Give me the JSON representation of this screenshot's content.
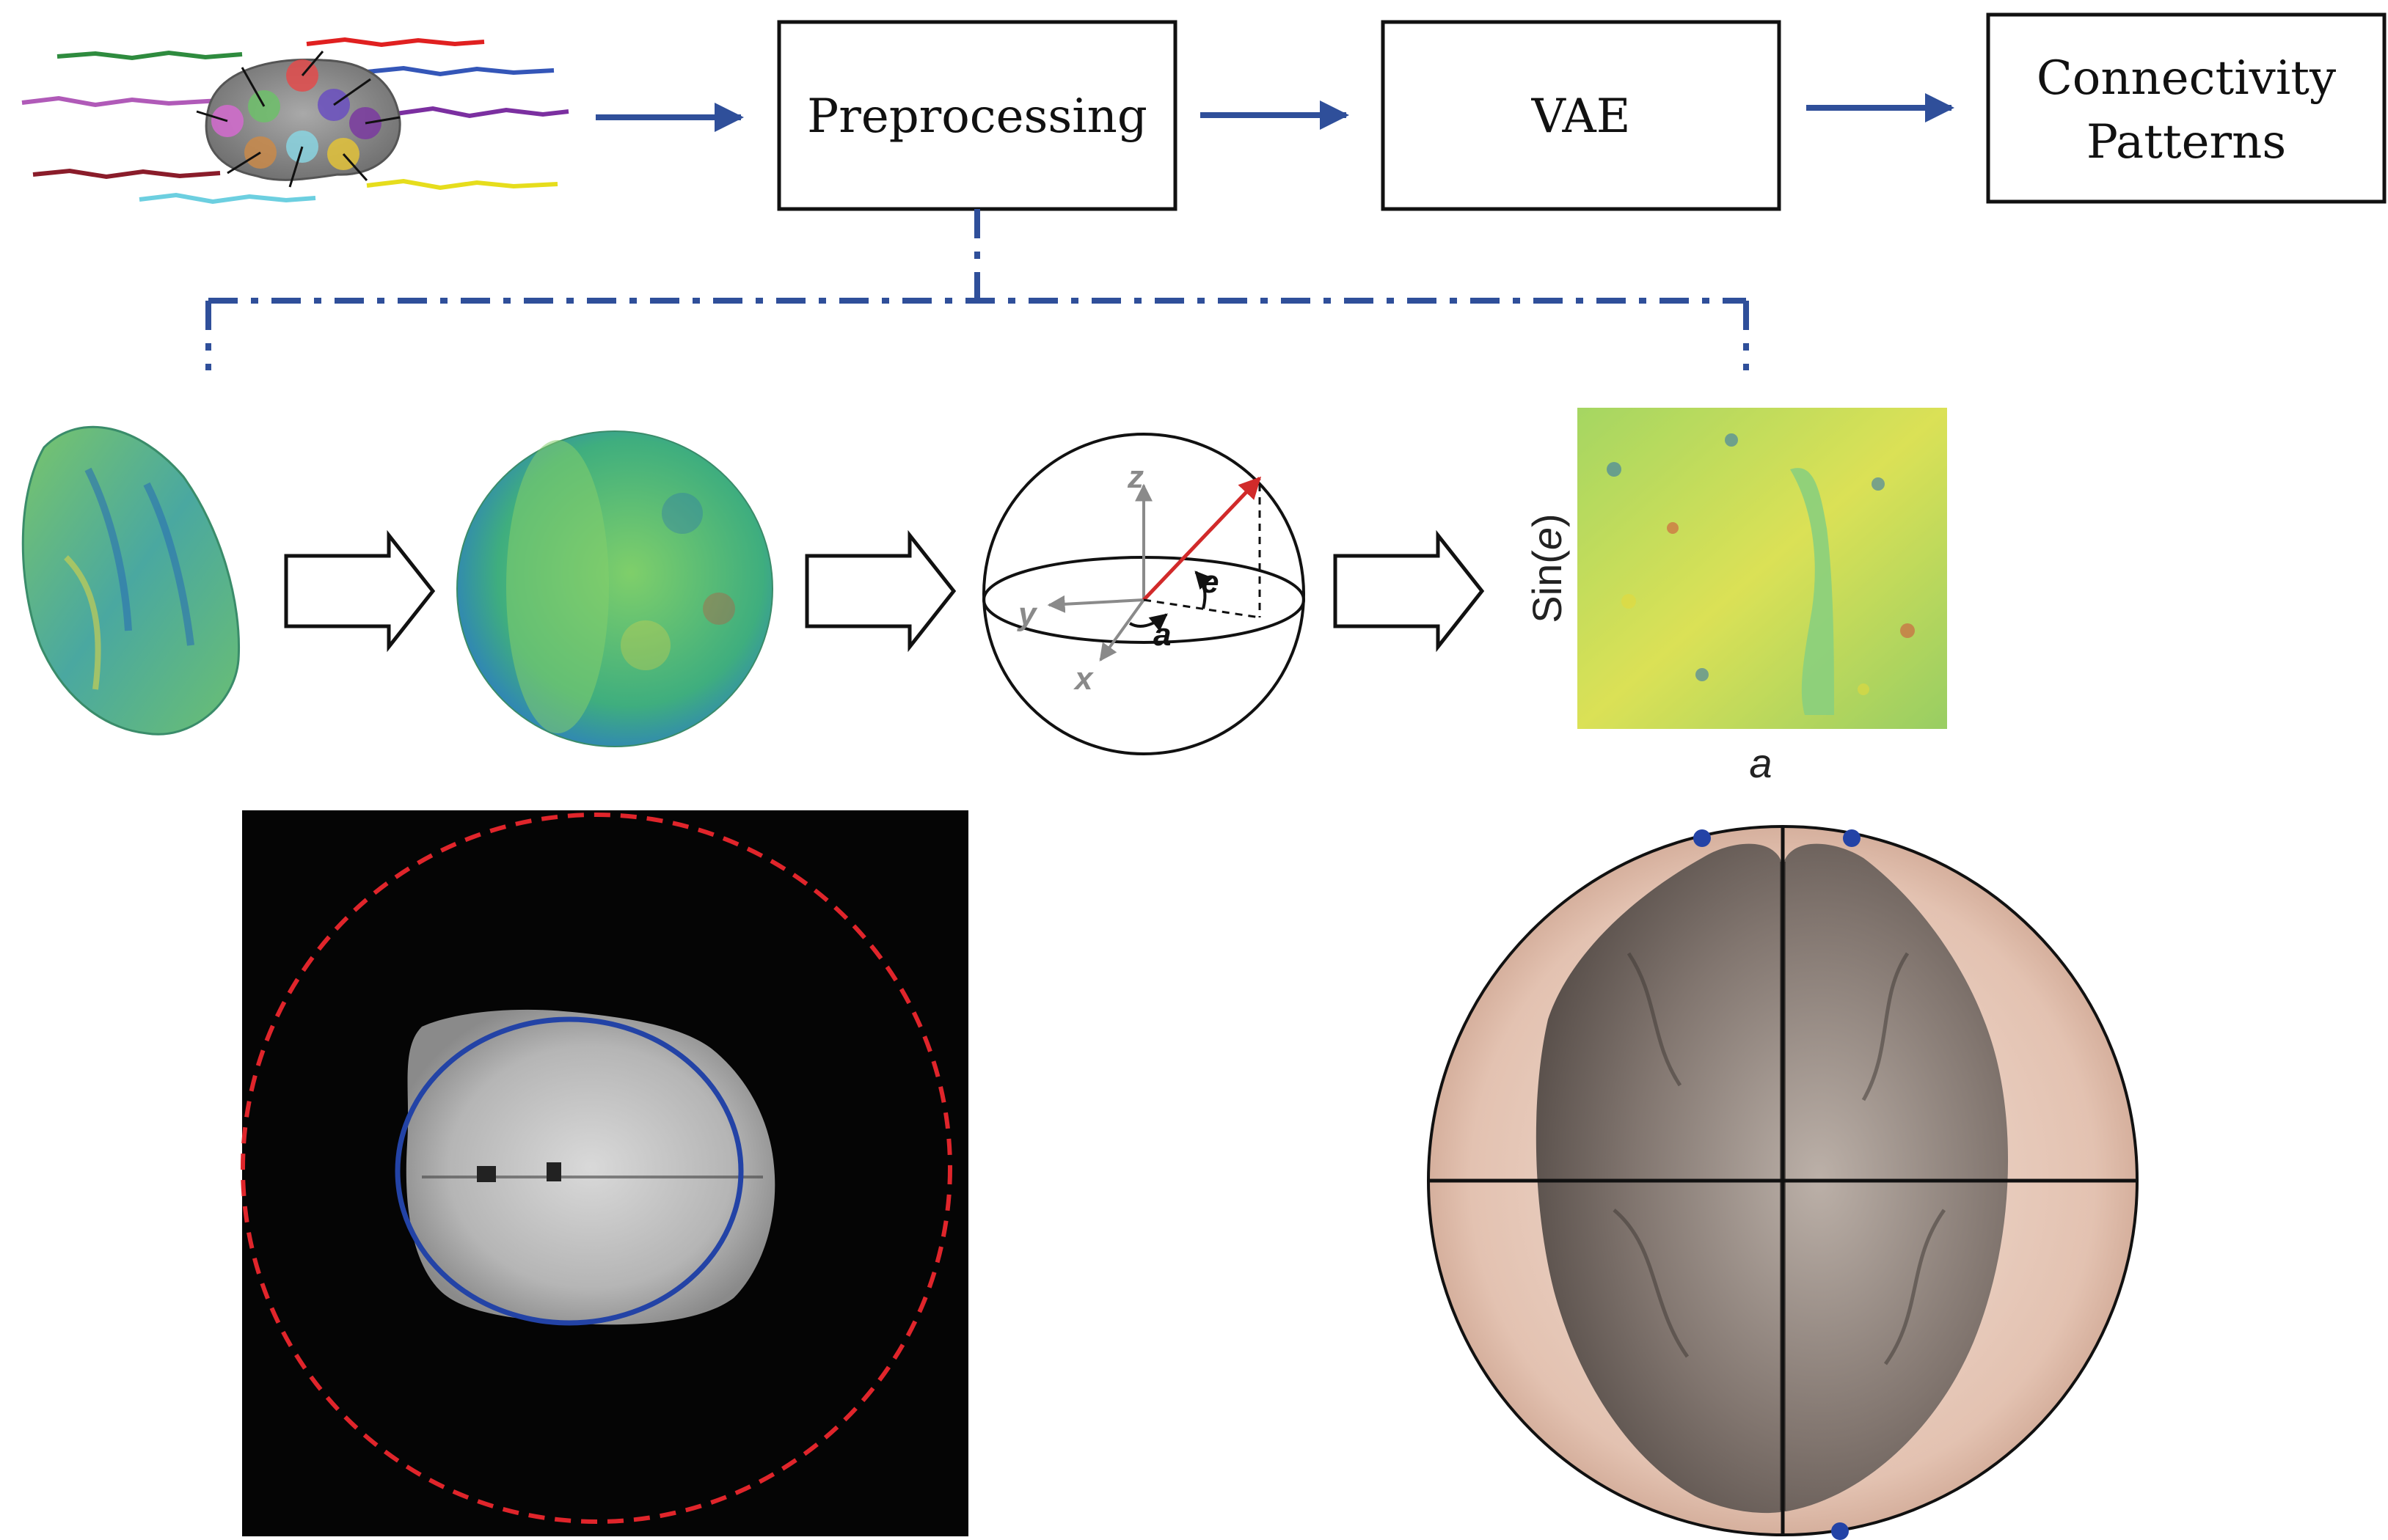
{
  "pipeline": {
    "boxes": {
      "preprocessing": "Preprocessing",
      "vae": "VAE",
      "connectivity_line1": "Connectivity",
      "connectivity_line2": "Patterns"
    }
  },
  "sphere_diagram": {
    "axis_z": "z",
    "axis_y": "y",
    "axis_x": "x",
    "angle_e": "e",
    "angle_a": "a"
  },
  "flat_map": {
    "y_label_prefix": "Sin(",
    "y_label_var": "e",
    "y_label_suffix": ")",
    "x_label": "a"
  },
  "colors": {
    "arrow_blue": "#2f4f9a",
    "vector_red": "#d12a2a",
    "dashed_red": "#e0252b",
    "ellipse_blue": "#2343a6",
    "sphere_tint": "#e9cfc2"
  }
}
